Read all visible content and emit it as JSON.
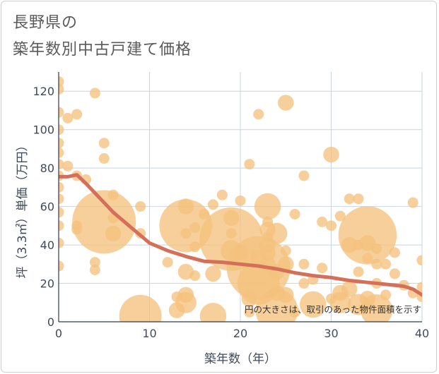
{
  "title": {
    "line1": "長野県の",
    "line2": "築年数別中古戸建て価格"
  },
  "chart_data": {
    "type": "scatter",
    "title": "長野県の築年数別中古戸建て価格",
    "xlabel": "築年数（年）",
    "ylabel": "坪（3.3㎡）単価（万円）",
    "xlim": [
      0,
      40
    ],
    "ylim": [
      0,
      130
    ],
    "xticks": [
      "0",
      "10",
      "20",
      "30",
      "40"
    ],
    "yticks": [
      "0",
      "20",
      "40",
      "60",
      "80",
      "100",
      "120"
    ],
    "grid": true,
    "bubble_color": "#f5c27e",
    "line_color": "#d4705a",
    "note": "円の大きさは、取引のあった物件面積を示す",
    "points": [
      {
        "x": 0,
        "y": 125,
        "s": 1
      },
      {
        "x": 0,
        "y": 121,
        "s": 1
      },
      {
        "x": 0,
        "y": 109,
        "s": 1
      },
      {
        "x": 0,
        "y": 100,
        "s": 1
      },
      {
        "x": 0,
        "y": 93,
        "s": 1
      },
      {
        "x": 0,
        "y": 88,
        "s": 1
      },
      {
        "x": 0,
        "y": 82,
        "s": 1
      },
      {
        "x": 0,
        "y": 76,
        "s": 1
      },
      {
        "x": 0,
        "y": 70,
        "s": 1
      },
      {
        "x": 0,
        "y": 64,
        "s": 1
      },
      {
        "x": 0,
        "y": 57,
        "s": 1
      },
      {
        "x": 0,
        "y": 50,
        "s": 1
      },
      {
        "x": 0,
        "y": 41,
        "s": 1
      },
      {
        "x": 0,
        "y": 29,
        "s": 1
      },
      {
        "x": 1,
        "y": 106,
        "s": 1
      },
      {
        "x": 1,
        "y": 81,
        "s": 1
      },
      {
        "x": 2,
        "y": 108,
        "s": 1
      },
      {
        "x": 2,
        "y": 76,
        "s": 1
      },
      {
        "x": 2,
        "y": 50,
        "s": 1
      },
      {
        "x": 2,
        "y": 48,
        "s": 1
      },
      {
        "x": 3,
        "y": 74,
        "s": 1
      },
      {
        "x": 4,
        "y": 119,
        "s": 1
      },
      {
        "x": 4,
        "y": 31,
        "s": 1
      },
      {
        "x": 4,
        "y": 27,
        "s": 1
      },
      {
        "x": 5,
        "y": 93,
        "s": 1
      },
      {
        "x": 5,
        "y": 85,
        "s": 1
      },
      {
        "x": 5,
        "y": 52,
        "s": 6
      },
      {
        "x": 6,
        "y": 66,
        "s": 1
      },
      {
        "x": 6,
        "y": 54,
        "s": 1
      },
      {
        "x": 6,
        "y": 46,
        "s": 1.5
      },
      {
        "x": 9,
        "y": 60,
        "s": 1
      },
      {
        "x": 9,
        "y": 46,
        "s": 1
      },
      {
        "x": 9,
        "y": 3,
        "s": 4
      },
      {
        "x": 12,
        "y": 31,
        "s": 1
      },
      {
        "x": 13,
        "y": 13,
        "s": 1
      },
      {
        "x": 13,
        "y": 6,
        "s": 1.5
      },
      {
        "x": 14,
        "y": 60,
        "s": 1.5
      },
      {
        "x": 14,
        "y": 50,
        "s": 5
      },
      {
        "x": 14,
        "y": 46,
        "s": 1
      },
      {
        "x": 14,
        "y": 26,
        "s": 1.5
      },
      {
        "x": 14,
        "y": 14,
        "s": 1.5
      },
      {
        "x": 14,
        "y": 10,
        "s": 2
      },
      {
        "x": 15,
        "y": 49,
        "s": 1
      },
      {
        "x": 15,
        "y": 39,
        "s": 1
      },
      {
        "x": 15,
        "y": 24,
        "s": 1
      },
      {
        "x": 16,
        "y": 56,
        "s": 1
      },
      {
        "x": 17,
        "y": 61,
        "s": 1
      },
      {
        "x": 17,
        "y": 25,
        "s": 1.5
      },
      {
        "x": 17,
        "y": 3,
        "s": 2.5
      },
      {
        "x": 18,
        "y": 66,
        "s": 1
      },
      {
        "x": 19,
        "y": 54,
        "s": 1.5
      },
      {
        "x": 19,
        "y": 46,
        "s": 1
      },
      {
        "x": 19,
        "y": 43,
        "s": 6
      },
      {
        "x": 19,
        "y": 37,
        "s": 2
      },
      {
        "x": 20,
        "y": 36,
        "s": 1.5
      },
      {
        "x": 20,
        "y": 63,
        "s": 1
      },
      {
        "x": 21,
        "y": 82,
        "s": 1
      },
      {
        "x": 21,
        "y": 12,
        "s": 1.5
      },
      {
        "x": 21,
        "y": 5,
        "s": 1
      },
      {
        "x": 22,
        "y": 108,
        "s": 1
      },
      {
        "x": 22,
        "y": 33,
        "s": 1.5
      },
      {
        "x": 22,
        "y": 28,
        "s": 6
      },
      {
        "x": 22,
        "y": 20,
        "s": 4
      },
      {
        "x": 23,
        "y": 60,
        "s": 2.5
      },
      {
        "x": 23,
        "y": 52,
        "s": 1
      },
      {
        "x": 23,
        "y": 48,
        "s": 1.5
      },
      {
        "x": 23,
        "y": 44,
        "s": 1
      },
      {
        "x": 23,
        "y": 40,
        "s": 1.5
      },
      {
        "x": 23,
        "y": 36,
        "s": 1.5
      },
      {
        "x": 23,
        "y": 30,
        "s": 1.5
      },
      {
        "x": 24,
        "y": 46,
        "s": 2
      },
      {
        "x": 24,
        "y": 26,
        "s": 1.5
      },
      {
        "x": 24,
        "y": 15,
        "s": 1.5
      },
      {
        "x": 24,
        "y": 6,
        "s": 4
      },
      {
        "x": 25,
        "y": 114,
        "s": 1.5
      },
      {
        "x": 25,
        "y": 37,
        "s": 1
      },
      {
        "x": 25,
        "y": 30,
        "s": 1.5
      },
      {
        "x": 25,
        "y": 14,
        "s": 1.5
      },
      {
        "x": 26,
        "y": 56,
        "s": 1
      },
      {
        "x": 26,
        "y": 5,
        "s": 1
      },
      {
        "x": 27,
        "y": 76,
        "s": 1
      },
      {
        "x": 27,
        "y": 30,
        "s": 1
      },
      {
        "x": 27,
        "y": 20,
        "s": 1
      },
      {
        "x": 28,
        "y": 22,
        "s": 1
      },
      {
        "x": 28,
        "y": 9,
        "s": 2.5
      },
      {
        "x": 29,
        "y": 52,
        "s": 1
      },
      {
        "x": 29,
        "y": 28,
        "s": 1
      },
      {
        "x": 30,
        "y": 87,
        "s": 1.5
      },
      {
        "x": 30,
        "y": 50,
        "s": 1
      },
      {
        "x": 30,
        "y": 12,
        "s": 1
      },
      {
        "x": 31,
        "y": 55,
        "s": 1
      },
      {
        "x": 31,
        "y": 15,
        "s": 1.5
      },
      {
        "x": 31,
        "y": 10,
        "s": 2
      },
      {
        "x": 32,
        "y": 64,
        "s": 1
      },
      {
        "x": 32,
        "y": 40,
        "s": 1.5
      },
      {
        "x": 32,
        "y": 17,
        "s": 1.5
      },
      {
        "x": 33,
        "y": 64,
        "s": 1
      },
      {
        "x": 33,
        "y": 40,
        "s": 1
      },
      {
        "x": 33,
        "y": 26,
        "s": 1
      },
      {
        "x": 33,
        "y": 9,
        "s": 2
      },
      {
        "x": 34,
        "y": 45,
        "s": 5.5
      },
      {
        "x": 34,
        "y": 41,
        "s": 1.5
      },
      {
        "x": 34,
        "y": 33,
        "s": 1
      },
      {
        "x": 34,
        "y": 12,
        "s": 1.5
      },
      {
        "x": 35,
        "y": 38,
        "s": 1
      },
      {
        "x": 35,
        "y": 30,
        "s": 1
      },
      {
        "x": 35,
        "y": 20,
        "s": 1
      },
      {
        "x": 35,
        "y": 6,
        "s": 3
      },
      {
        "x": 36,
        "y": 30,
        "s": 1
      },
      {
        "x": 36,
        "y": 14,
        "s": 1
      },
      {
        "x": 37,
        "y": 36,
        "s": 1
      },
      {
        "x": 37,
        "y": 25,
        "s": 1
      },
      {
        "x": 38,
        "y": 19,
        "s": 1
      },
      {
        "x": 39,
        "y": 62,
        "s": 1
      },
      {
        "x": 39,
        "y": 15,
        "s": 1
      },
      {
        "x": 40,
        "y": 32,
        "s": 1
      },
      {
        "x": 40,
        "y": 18,
        "s": 1
      },
      {
        "x": 40,
        "y": 13,
        "s": 1
      }
    ],
    "trend": {
      "x": [
        0,
        1,
        2,
        3,
        4,
        5,
        6,
        8,
        10,
        12,
        14,
        16,
        18,
        20,
        22,
        24,
        26,
        28,
        30,
        32,
        34,
        36,
        38,
        39,
        40
      ],
      "y": [
        75.5,
        75.5,
        76.5,
        72,
        67,
        62,
        57,
        49,
        41,
        37,
        34,
        31.5,
        31,
        30,
        29,
        27.5,
        25.5,
        24,
        23,
        21.5,
        20.5,
        19.5,
        18.5,
        17,
        14
      ]
    }
  }
}
